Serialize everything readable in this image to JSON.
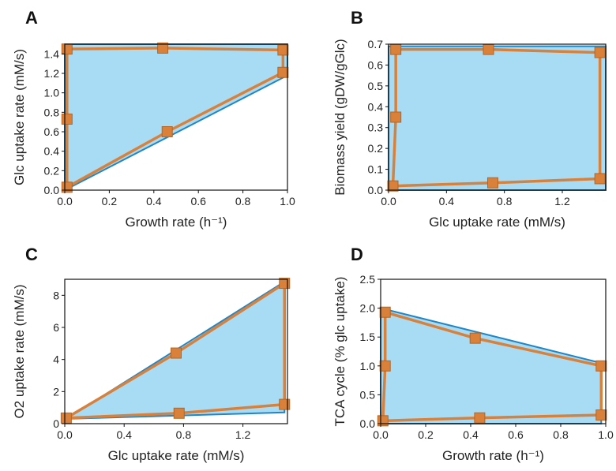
{
  "colors": {
    "region_fill": "#a8dcf4",
    "region_edge": "#1f86c8",
    "path": "#d9803a",
    "frame": "#111111"
  },
  "chart_data": [
    {
      "panel": "A",
      "type": "area",
      "xlabel": "Growth rate (h⁻¹)",
      "ylabel": "Glc uptake rate (mM/s)",
      "xlim": [
        0,
        1.0
      ],
      "ylim": [
        0,
        1.5
      ],
      "xticks": [
        "0.0",
        "0.2",
        "0.4",
        "0.6",
        "0.8",
        "1.0"
      ],
      "xtick_values": [
        0,
        0.2,
        0.4,
        0.6,
        0.8,
        1.0
      ],
      "yticks": [
        "0.0",
        "0.2",
        "0.4",
        "0.6",
        "0.8",
        "1.0",
        "1.2",
        "1.4"
      ],
      "ytick_values": [
        0,
        0.2,
        0.4,
        0.6,
        0.8,
        1.0,
        1.2,
        1.4
      ],
      "region": [
        [
          0.0,
          0.0
        ],
        [
          0.0,
          1.5
        ],
        [
          1.0,
          1.5
        ],
        [
          1.0,
          1.18
        ],
        [
          0.0,
          0.0
        ]
      ],
      "path": [
        [
          0.01,
          0.03
        ],
        [
          0.01,
          0.73
        ],
        [
          0.01,
          1.45
        ],
        [
          0.44,
          1.46
        ],
        [
          0.98,
          1.44
        ],
        [
          0.98,
          1.21
        ],
        [
          0.46,
          0.6
        ],
        [
          0.01,
          0.03
        ]
      ],
      "markers": [
        [
          0.01,
          0.03
        ],
        [
          0.01,
          0.73
        ],
        [
          0.01,
          1.45
        ],
        [
          0.44,
          1.46
        ],
        [
          0.98,
          1.44
        ],
        [
          0.98,
          1.21
        ],
        [
          0.46,
          0.6
        ]
      ]
    },
    {
      "panel": "B",
      "type": "area",
      "xlabel": "Glc uptake rate (mM/s)",
      "ylabel": "Biomass yield (gDW/gGlc)",
      "xlim": [
        0,
        1.5
      ],
      "ylim": [
        0,
        0.7
      ],
      "xticks": [
        "0.0",
        "0.4",
        "0.8",
        "1.2"
      ],
      "xtick_values": [
        0,
        0.4,
        0.8,
        1.2
      ],
      "yticks": [
        "0.0",
        "0.1",
        "0.2",
        "0.3",
        "0.4",
        "0.5",
        "0.6",
        "0.7"
      ],
      "ytick_values": [
        0,
        0.1,
        0.2,
        0.3,
        0.4,
        0.5,
        0.6,
        0.7
      ],
      "region": [
        [
          0.0,
          0.0
        ],
        [
          0.0,
          0.69
        ],
        [
          1.5,
          0.69
        ],
        [
          1.5,
          0.0
        ],
        [
          0.0,
          0.0
        ]
      ],
      "path": [
        [
          0.03,
          0.02
        ],
        [
          0.05,
          0.35
        ],
        [
          0.05,
          0.675
        ],
        [
          0.69,
          0.675
        ],
        [
          1.46,
          0.66
        ],
        [
          1.46,
          0.055
        ],
        [
          0.72,
          0.035
        ],
        [
          0.03,
          0.02
        ]
      ],
      "markers": [
        [
          0.03,
          0.02
        ],
        [
          0.05,
          0.35
        ],
        [
          0.05,
          0.675
        ],
        [
          0.69,
          0.675
        ],
        [
          1.46,
          0.66
        ],
        [
          1.46,
          0.055
        ],
        [
          0.72,
          0.035
        ]
      ]
    },
    {
      "panel": "C",
      "type": "area",
      "xlabel": "Glc uptake rate (mM/s)",
      "ylabel": "O2 uptake rate (mM/s)",
      "xlim": [
        0,
        1.5
      ],
      "ylim": [
        0,
        9
      ],
      "xticks": [
        "0.0",
        "0.4",
        "0.8",
        "1.2"
      ],
      "xtick_values": [
        0,
        0.4,
        0.8,
        1.2
      ],
      "yticks": [
        "0",
        "2",
        "4",
        "6",
        "8"
      ],
      "ytick_values": [
        0,
        2,
        4,
        6,
        8
      ],
      "region": [
        [
          0.01,
          0.3
        ],
        [
          1.48,
          8.85
        ],
        [
          1.48,
          0.7
        ],
        [
          0.01,
          0.3
        ]
      ],
      "path": [
        [
          0.01,
          0.35
        ],
        [
          0.75,
          4.4
        ],
        [
          1.48,
          8.75
        ],
        [
          1.48,
          1.2
        ],
        [
          0.77,
          0.65
        ],
        [
          0.01,
          0.35
        ]
      ],
      "markers": [
        [
          0.01,
          0.35
        ],
        [
          0.75,
          4.4
        ],
        [
          1.48,
          8.75
        ],
        [
          1.48,
          1.2
        ],
        [
          0.77,
          0.65
        ]
      ]
    },
    {
      "panel": "D",
      "type": "area",
      "xlabel": "Growth rate (h⁻¹)",
      "ylabel": "TCA cycle (% glc uptake)",
      "xlim": [
        0,
        1.0
      ],
      "ylim": [
        0,
        2.5
      ],
      "xticks": [
        "0.0",
        "0.2",
        "0.4",
        "0.6",
        "0.8",
        "1.0"
      ],
      "xtick_values": [
        0,
        0.2,
        0.4,
        0.6,
        0.8,
        1.0
      ],
      "yticks": [
        "0.0",
        "0.5",
        "1.0",
        "1.5",
        "2.0",
        "2.5"
      ],
      "ytick_values": [
        0,
        0.5,
        1.0,
        1.5,
        2.0,
        2.5
      ],
      "region": [
        [
          0.0,
          0.0
        ],
        [
          0.0,
          2.0
        ],
        [
          0.98,
          1.05
        ],
        [
          0.98,
          0.0
        ],
        [
          0.0,
          0.0
        ]
      ],
      "path": [
        [
          0.01,
          0.05
        ],
        [
          0.02,
          1.0
        ],
        [
          0.02,
          1.93
        ],
        [
          0.42,
          1.48
        ],
        [
          0.98,
          1.0
        ],
        [
          0.98,
          0.15
        ],
        [
          0.44,
          0.1
        ],
        [
          0.01,
          0.05
        ]
      ],
      "markers": [
        [
          0.01,
          0.05
        ],
        [
          0.02,
          1.0
        ],
        [
          0.02,
          1.93
        ],
        [
          0.42,
          1.48
        ],
        [
          0.98,
          1.0
        ],
        [
          0.98,
          0.15
        ],
        [
          0.44,
          0.1
        ]
      ]
    }
  ]
}
